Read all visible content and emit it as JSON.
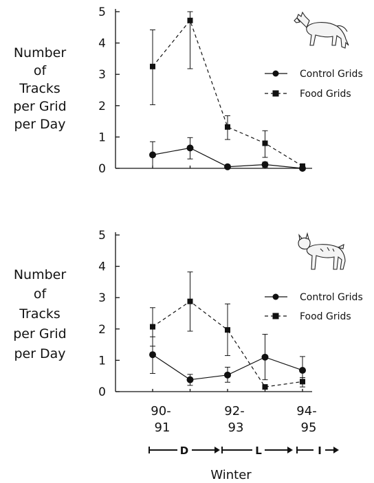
{
  "ylabel_lines": [
    "Number",
    "of",
    "Tracks",
    "per Grid",
    "per Day"
  ],
  "x_tick_labels": [
    {
      "line1": "90-",
      "line2": "91"
    },
    {
      "line1": "92-",
      "line2": "93"
    },
    {
      "line1": "94-",
      "line2": "95"
    }
  ],
  "phases": [
    "D",
    "L",
    "I"
  ],
  "xlabel": "Winter",
  "legend": {
    "control": "Control Grids",
    "food": "Food Grids"
  },
  "chart_data": [
    {
      "type": "line",
      "panel_icon": "wolf-icon",
      "x": [
        "90-91",
        "91-92",
        "92-93",
        "93-94",
        "94-95"
      ],
      "ylim": [
        0,
        5
      ],
      "yticks": [
        0,
        1,
        2,
        3,
        4,
        5
      ],
      "series": [
        {
          "name": "Control Grids",
          "marker": "circle",
          "style": "solid",
          "values": [
            0.43,
            0.65,
            0.05,
            0.12,
            0.0
          ],
          "err_upper": [
            0.85,
            0.98,
            0.05,
            0.2,
            0.0
          ],
          "err_lower": [
            0.0,
            0.3,
            0.05,
            0.03,
            0.0
          ]
        },
        {
          "name": "Food Grids",
          "marker": "square",
          "style": "dashed",
          "values": [
            3.25,
            4.72,
            1.32,
            0.8,
            0.07
          ],
          "err_upper": [
            4.42,
            5.0,
            1.68,
            1.2,
            0.1
          ],
          "err_lower": [
            2.03,
            3.18,
            0.92,
            0.35,
            0.0
          ]
        }
      ]
    },
    {
      "type": "line",
      "panel_icon": "lynx-icon",
      "x": [
        "90-91",
        "91-92",
        "92-93",
        "93-94",
        "94-95"
      ],
      "ylim": [
        0,
        5
      ],
      "yticks": [
        0,
        1,
        2,
        3,
        4,
        5
      ],
      "series": [
        {
          "name": "Control Grids",
          "marker": "circle",
          "style": "solid",
          "values": [
            1.18,
            0.38,
            0.53,
            1.1,
            0.68
          ],
          "err_upper": [
            1.75,
            0.55,
            0.78,
            1.83,
            1.12
          ],
          "err_lower": [
            0.58,
            0.2,
            0.3,
            0.38,
            0.25
          ]
        },
        {
          "name": "Food Grids",
          "marker": "square",
          "style": "dashed",
          "values": [
            2.07,
            2.88,
            1.97,
            0.15,
            0.32
          ],
          "err_upper": [
            2.68,
            3.82,
            2.8,
            0.18,
            0.45
          ],
          "err_lower": [
            1.45,
            1.93,
            1.15,
            0.1,
            0.15
          ]
        }
      ]
    }
  ]
}
